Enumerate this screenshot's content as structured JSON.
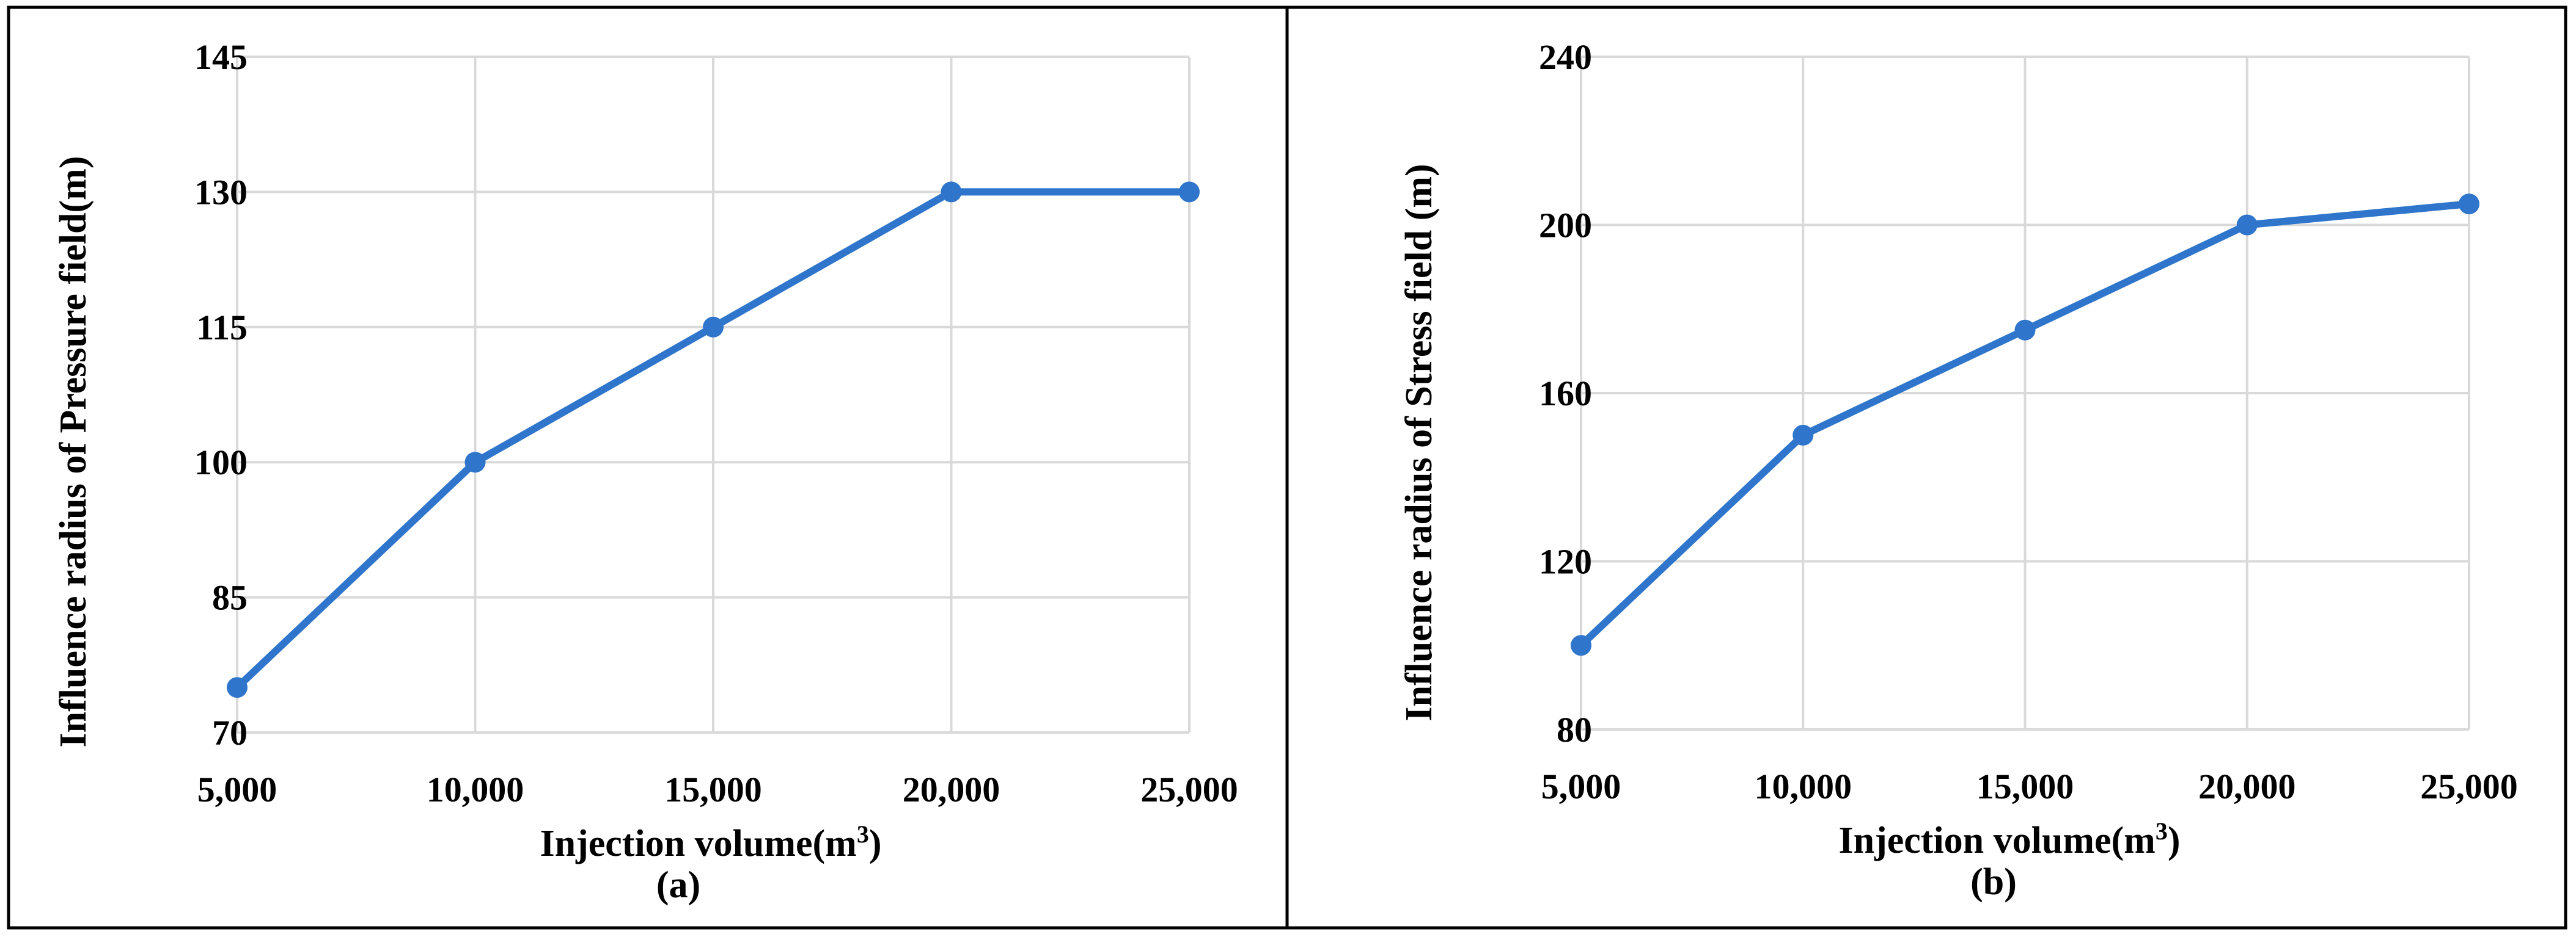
{
  "chart_data": [
    {
      "type": "line",
      "caption": "(a)",
      "title": "",
      "xlabel_main": "Injection volume(m",
      "xlabel_sup": "3",
      "xlabel_close": ")",
      "ylabel": "Influence radius of Pressure field(m)",
      "x": [
        5000,
        10000,
        15000,
        20000,
        25000
      ],
      "x_tick_labels": [
        "5,000",
        "10,000",
        "15,000",
        "20,000",
        "25,000"
      ],
      "y_ticks": [
        70,
        85,
        100,
        115,
        130,
        145
      ],
      "ylim": [
        70,
        145
      ],
      "series": [
        {
          "name": "Pressure field",
          "values": [
            75,
            100,
            115,
            130,
            130
          ],
          "color": "#2e75cb"
        }
      ],
      "grid": true
    },
    {
      "type": "line",
      "caption": "(b)",
      "title": "",
      "xlabel_main": "Injection volume(m",
      "xlabel_sup": "3",
      "xlabel_close": ")",
      "ylabel": "Influence radius of Stress field  (m)",
      "x": [
        5000,
        10000,
        15000,
        20000,
        25000
      ],
      "x_tick_labels": [
        "5,000",
        "10,000",
        "15,000",
        "20,000",
        "25,000"
      ],
      "y_ticks": [
        80,
        120,
        160,
        200,
        240
      ],
      "ylim": [
        80,
        240
      ],
      "series": [
        {
          "name": "Stress field",
          "values": [
            100,
            150,
            175,
            200,
            205
          ],
          "color": "#2e75cb"
        }
      ],
      "grid": true
    }
  ]
}
